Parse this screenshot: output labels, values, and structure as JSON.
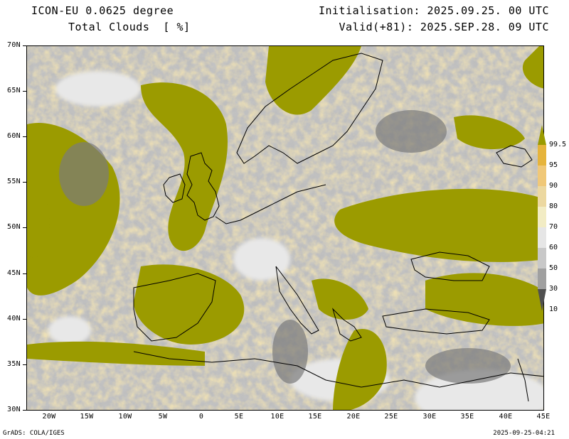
{
  "header": {
    "model": "ICON-EU 0.0625 degree",
    "variable": "Total Clouds  [ %]",
    "init": "Initialisation: 2025.09.25. 00 UTC",
    "valid": "Valid(+81): 2025.SEP.28. 09 UTC"
  },
  "map": {
    "lat_labels": [
      "70N",
      "65N",
      "60N",
      "55N",
      "50N",
      "45N",
      "40N",
      "35N",
      "30N"
    ],
    "lon_labels": [
      "20W",
      "15W",
      "10W",
      "5W",
      "0",
      "5E",
      "10E",
      "15E",
      "20E",
      "25E",
      "30E",
      "35E",
      "40E",
      "45E"
    ],
    "lat_range": [
      30,
      70
    ],
    "lon_range": [
      -23,
      45
    ]
  },
  "colorbar": {
    "levels": [
      "99.5",
      "95",
      "90",
      "80",
      "70",
      "60",
      "50",
      "30",
      "10"
    ],
    "colors": {
      "top": "#9b9b00",
      "95": "#e6b43c",
      "90": "#f0c878",
      "80": "#ecd8a0",
      "70": "#f2ecc4",
      "60": "#e6e6e6",
      "50": "#c8c8c8",
      "30": "#a0a0a0",
      "10": "#787878",
      "bottom": "#505050"
    }
  },
  "footer": {
    "left": "GrADS: COLA/IGES",
    "right": "2025-09-25-04:21"
  }
}
